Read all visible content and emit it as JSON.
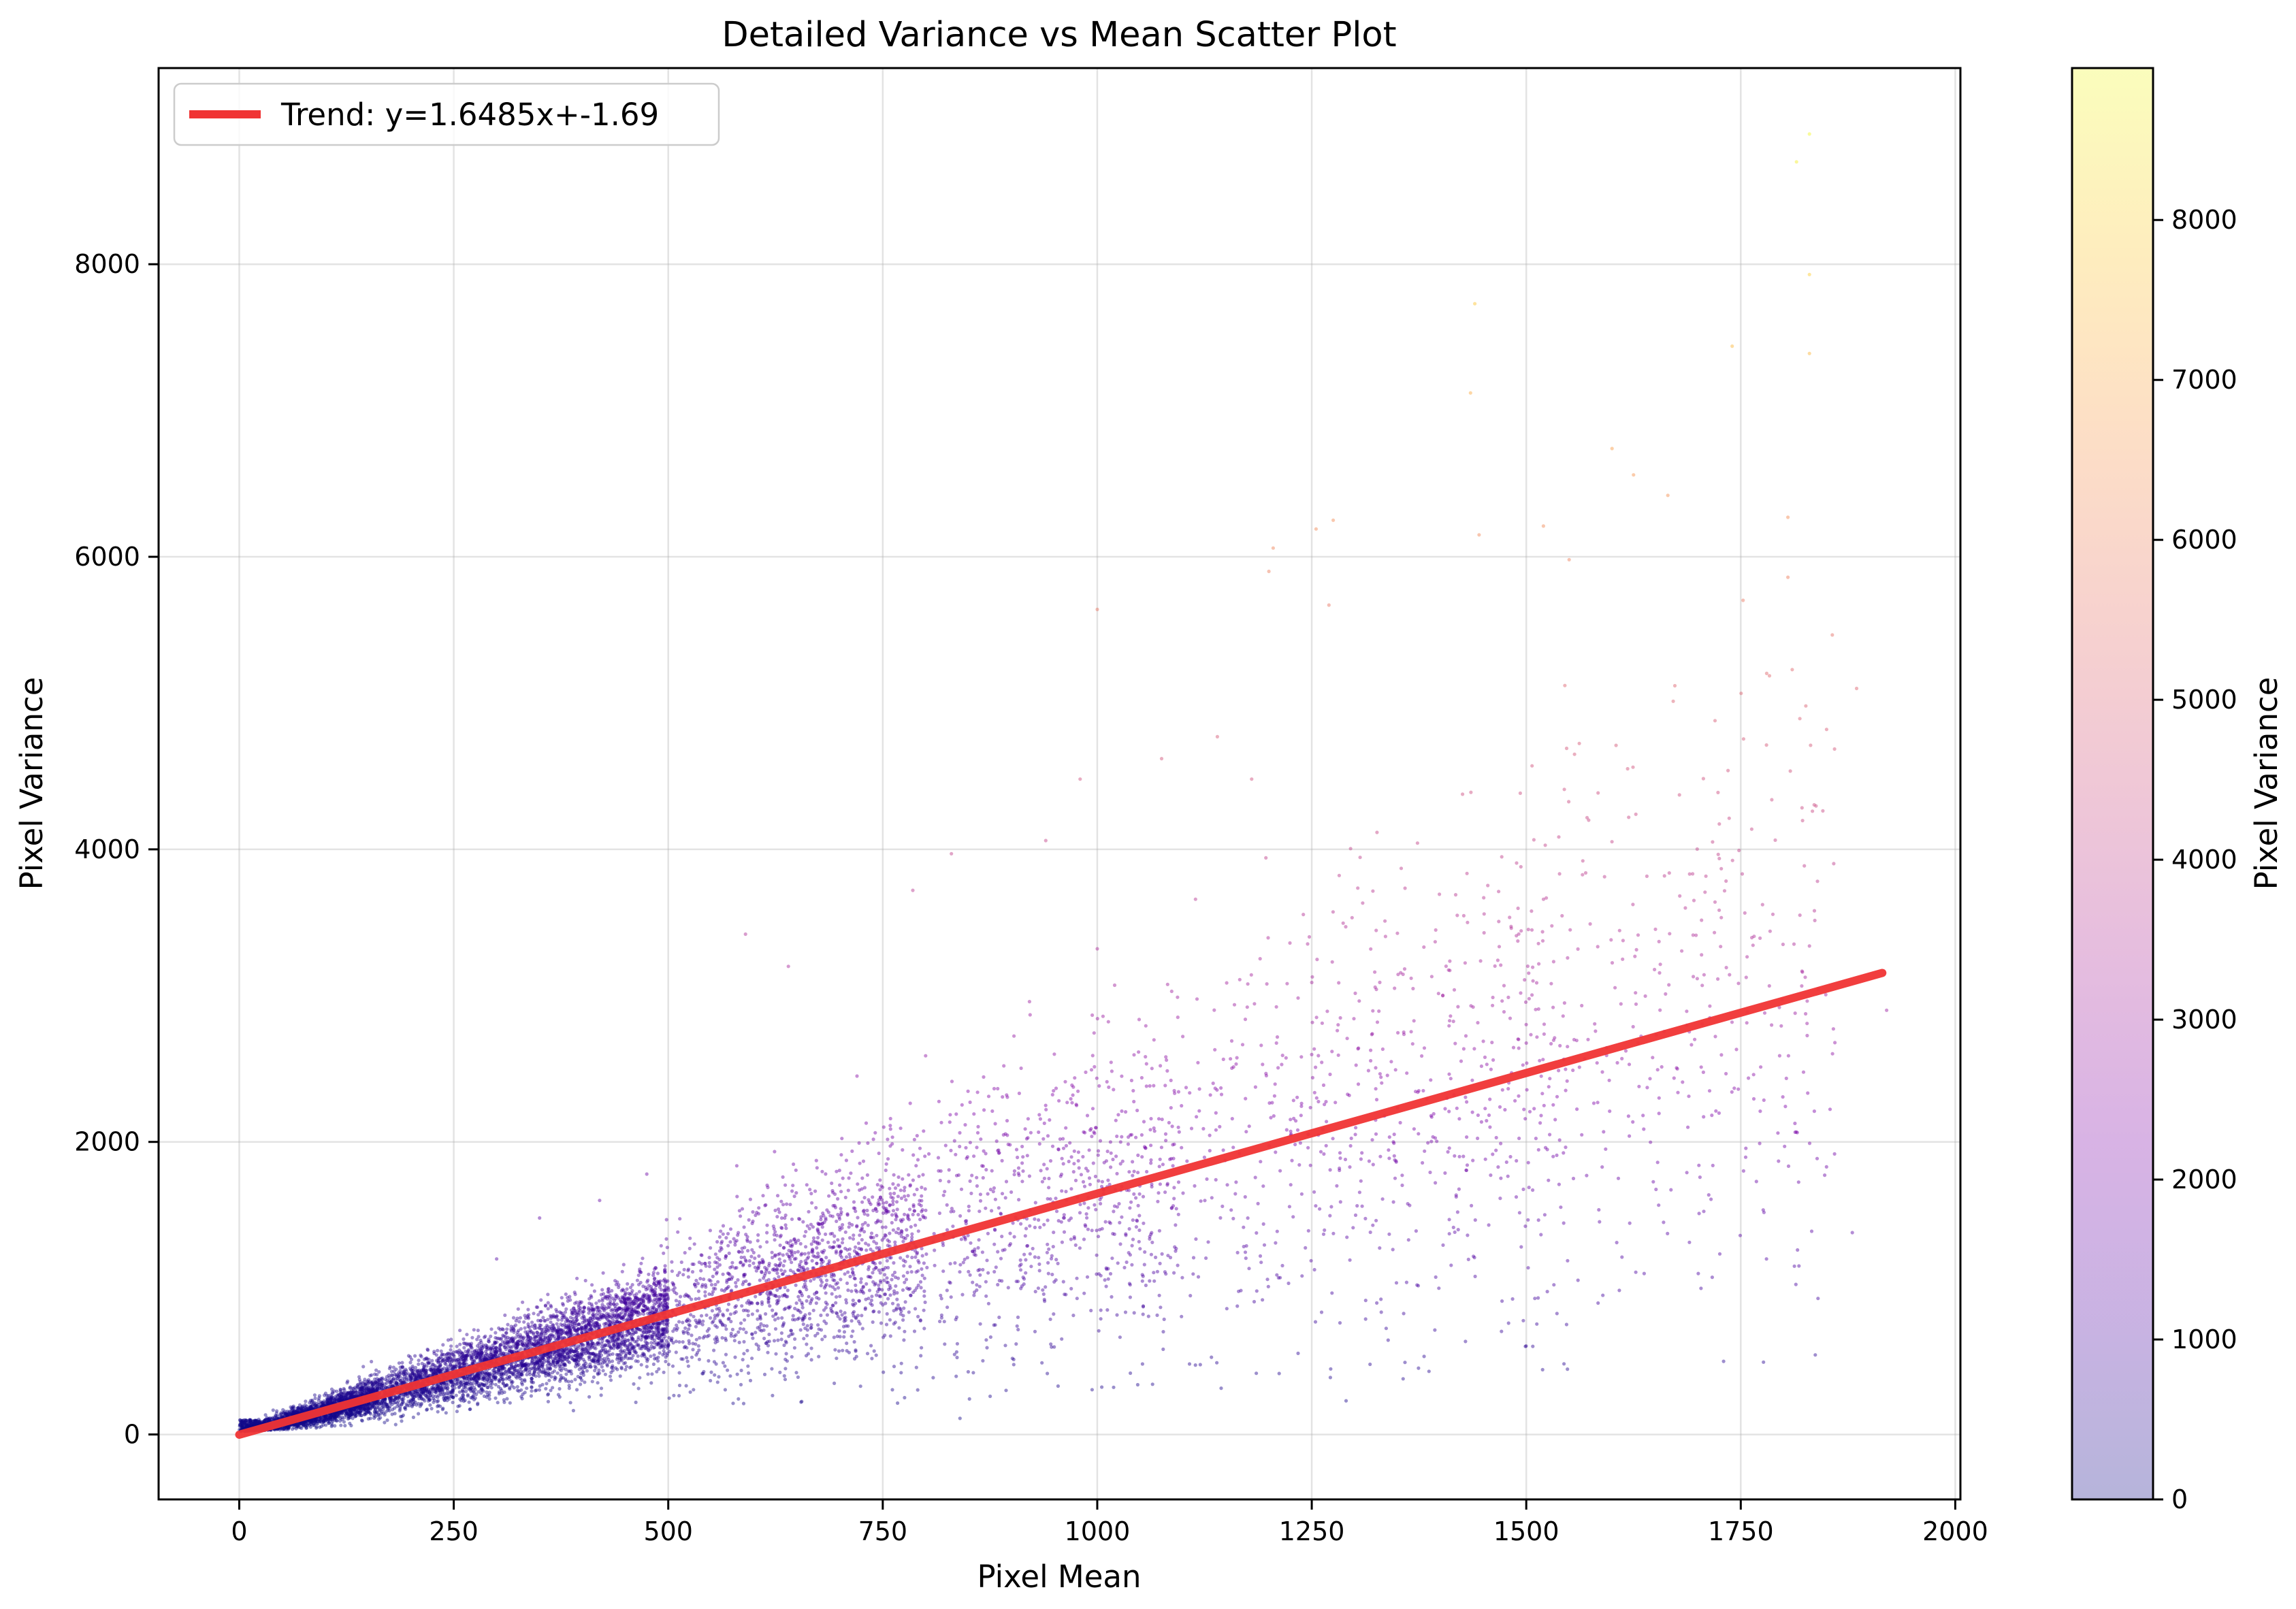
{
  "chart_data": {
    "type": "scatter",
    "title": "Detailed Variance vs Mean Scatter Plot",
    "xlabel": "Pixel Mean",
    "ylabel": "Pixel Variance",
    "xlim": [
      -94,
      2006
    ],
    "ylim": [
      -444,
      9341
    ],
    "xticks": [
      0,
      250,
      500,
      750,
      1000,
      1250,
      1500,
      1750,
      2000
    ],
    "yticks": [
      0,
      2000,
      4000,
      6000,
      8000
    ],
    "grid": true,
    "legend": {
      "location": "top-left",
      "entries": [
        {
          "label": "Trend: y=1.6485x+-1.69",
          "color": "#f03434"
        }
      ]
    },
    "trend": {
      "slope": 1.6485,
      "intercept": -1.69,
      "x_range": [
        0,
        1915
      ],
      "color": "#f03434"
    },
    "colorbar": {
      "label": "Pixel Variance",
      "range": [
        0,
        8950
      ],
      "ticks": [
        0,
        1000,
        2000,
        3000,
        4000,
        5000,
        6000,
        7000,
        8000
      ],
      "colormap": "plasma",
      "alpha": 0.3
    },
    "series": [
      {
        "name": "pixels",
        "point_count_estimate": 30000,
        "description": "dense cloud along trend for mean 0-500, sparser spread 500-1900 with strong heteroscedasticity",
        "representative_points": [
          [
            1440,
            7730
          ],
          [
            1435,
            7120
          ],
          [
            1830,
            8890
          ],
          [
            1815,
            8700
          ],
          [
            1830,
            7930
          ],
          [
            1740,
            7440
          ],
          [
            1830,
            7390
          ],
          [
            1600,
            6740
          ],
          [
            1625,
            6560
          ],
          [
            1665,
            6420
          ],
          [
            1805,
            6270
          ],
          [
            1275,
            6250
          ],
          [
            1255,
            6190
          ],
          [
            1520,
            6210
          ],
          [
            1205,
            6060
          ],
          [
            1445,
            6150
          ],
          [
            1550,
            5980
          ],
          [
            1200,
            5900
          ],
          [
            1805,
            5860
          ],
          [
            1000,
            5640
          ],
          [
            1270,
            5670
          ],
          [
            1885,
            5100
          ],
          [
            1850,
            4820
          ],
          [
            1720,
            4880
          ],
          [
            1545,
            5120
          ],
          [
            1075,
            4620
          ],
          [
            1140,
            4770
          ],
          [
            1180,
            4480
          ],
          [
            980,
            4480
          ],
          [
            940,
            4060
          ],
          [
            830,
            3970
          ],
          [
            1000,
            3320
          ],
          [
            1720,
            3640
          ],
          [
            1920,
            2900
          ],
          [
            590,
            3420
          ],
          [
            785,
            3720
          ],
          [
            640,
            3200
          ],
          [
            1730,
            500
          ],
          [
            1880,
            1380
          ],
          [
            1290,
            230
          ],
          [
            840,
            110
          ],
          [
            1620,
            2530
          ],
          [
            1460,
            2680
          ],
          [
            1250,
            3090
          ],
          [
            1380,
            2350
          ],
          [
            1100,
            1650
          ],
          [
            1330,
            1900
          ],
          [
            1555,
            1750
          ],
          [
            1660,
            1450
          ],
          [
            1780,
            1200
          ],
          [
            1840,
            930
          ],
          [
            1420,
            1520
          ],
          [
            950,
            2600
          ],
          [
            720,
            2450
          ],
          [
            1040,
            2420
          ],
          [
            1190,
            1220
          ],
          [
            880,
            1300
          ],
          [
            660,
            1050
          ],
          [
            560,
            1350
          ],
          [
            475,
            1780
          ],
          [
            420,
            1600
          ],
          [
            350,
            1480
          ],
          [
            300,
            1200
          ]
        ]
      }
    ]
  }
}
